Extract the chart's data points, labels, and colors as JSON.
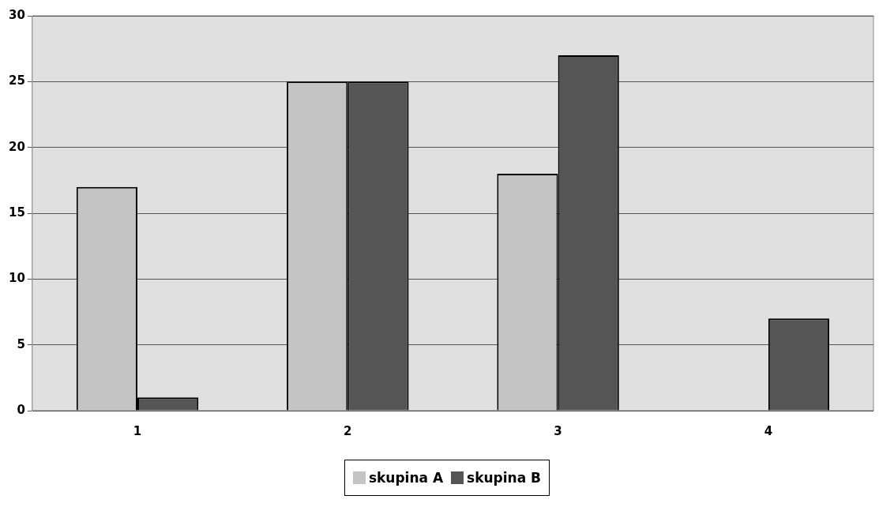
{
  "chart_data": {
    "type": "bar",
    "categories": [
      "1",
      "2",
      "3",
      "4"
    ],
    "series": [
      {
        "name": "skupina A",
        "color": "#c4c4c4",
        "values": [
          17,
          25,
          18,
          0
        ]
      },
      {
        "name": "skupina B",
        "color": "#555555",
        "values": [
          1,
          25,
          27,
          7
        ]
      }
    ],
    "ylim": [
      0,
      30
    ],
    "yticks": [
      0,
      5,
      10,
      15,
      20,
      25,
      30
    ],
    "grid": "y",
    "legend": "bottom"
  }
}
